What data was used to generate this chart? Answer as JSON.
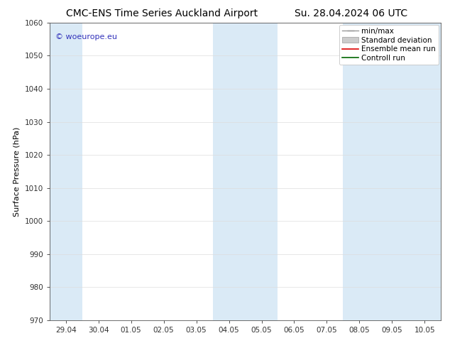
{
  "title_left": "CMC-ENS Time Series Auckland Airport",
  "title_right": "Su. 28.04.2024 06 UTC",
  "ylabel": "Surface Pressure (hPa)",
  "ylim": [
    970,
    1060
  ],
  "yticks": [
    970,
    980,
    990,
    1000,
    1010,
    1020,
    1030,
    1040,
    1050,
    1060
  ],
  "xtick_labels": [
    "29.04",
    "30.04",
    "01.05",
    "02.05",
    "03.05",
    "04.05",
    "05.05",
    "06.05",
    "07.05",
    "08.05",
    "09.05",
    "10.05"
  ],
  "xtick_positions": [
    0,
    1,
    2,
    3,
    4,
    5,
    6,
    7,
    8,
    9,
    10,
    11
  ],
  "xlim": [
    -0.5,
    11.5
  ],
  "shaded_bands": [
    {
      "x_start": -0.5,
      "x_end": 0.5,
      "color": "#daeaf6"
    },
    {
      "x_start": 4.5,
      "x_end": 5.5,
      "color": "#daeaf6"
    },
    {
      "x_start": 5.5,
      "x_end": 6.5,
      "color": "#daeaf6"
    },
    {
      "x_start": 8.5,
      "x_end": 9.5,
      "color": "#daeaf6"
    },
    {
      "x_start": 9.5,
      "x_end": 11.5,
      "color": "#daeaf6"
    }
  ],
  "legend_entries": [
    {
      "label": "min/max",
      "type": "errorbar",
      "color": "#aaaaaa"
    },
    {
      "label": "Standard deviation",
      "type": "bar",
      "color": "#cccccc"
    },
    {
      "label": "Ensemble mean run",
      "type": "line",
      "color": "#ff0000"
    },
    {
      "label": "Controll run",
      "type": "line",
      "color": "#008000"
    }
  ],
  "watermark_text": "© woeurope.eu",
  "watermark_color": "#3333bb",
  "background_color": "#ffffff",
  "title_fontsize": 10,
  "axis_label_fontsize": 8,
  "tick_fontsize": 7.5,
  "legend_fontsize": 7.5
}
